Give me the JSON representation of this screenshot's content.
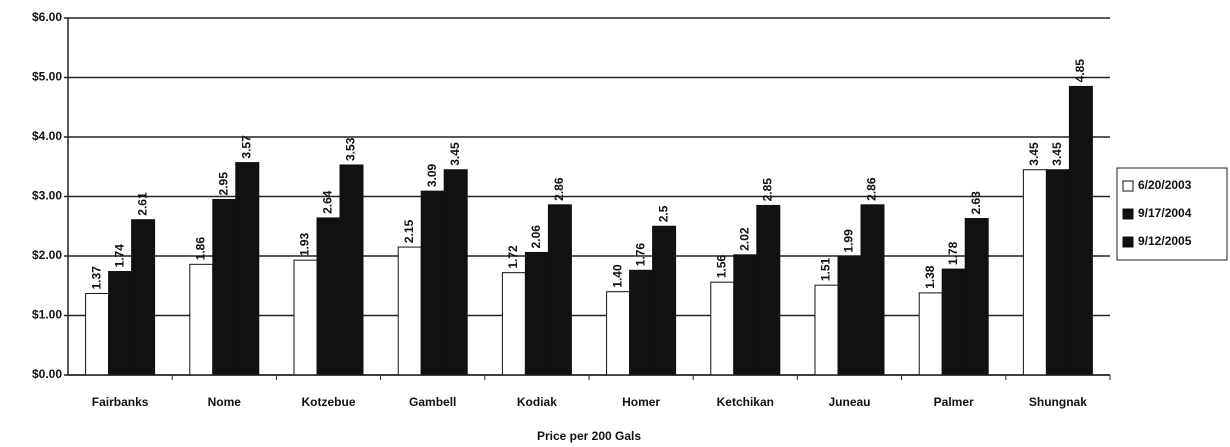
{
  "chart_data": {
    "type": "bar",
    "x_label": "Price per 200 Gals",
    "categories": [
      "Fairbanks",
      "Nome",
      "Kotzebue",
      "Gambell",
      "Kodiak",
      "Homer",
      "Ketchikan",
      "Juneau",
      "Palmer",
      "Shungnak"
    ],
    "series": [
      {
        "name": "6/20/2003",
        "color": "#ffffff",
        "values": [
          1.37,
          1.86,
          1.93,
          2.15,
          1.72,
          1.4,
          1.56,
          1.51,
          1.38,
          3.45
        ],
        "value_labels": [
          "1.37",
          "1.86",
          "1.93",
          "2.15",
          "1.72",
          "1.40",
          "1.56",
          "1.51",
          "1.38",
          "3.45"
        ]
      },
      {
        "name": "9/17/2004",
        "color": "#111111",
        "values": [
          1.74,
          2.95,
          2.64,
          3.09,
          2.06,
          1.76,
          2.02,
          1.99,
          1.78,
          3.45
        ],
        "value_labels": [
          "1.74",
          "2.95",
          "2.64",
          "3.09",
          "2.06",
          "1.76",
          "2.02",
          "1.99",
          "1.78",
          "3.45"
        ]
      },
      {
        "name": "9/12/2005",
        "color": "#111111",
        "values": [
          2.61,
          3.57,
          3.53,
          3.45,
          2.86,
          2.5,
          2.85,
          2.86,
          2.63,
          4.85
        ],
        "value_labels": [
          "2.61",
          "3.57",
          "3.53",
          "3.45",
          "2.86",
          "2.5",
          "2.85",
          "2.86",
          "2.63",
          "4.85"
        ]
      }
    ],
    "ylim": [
      0,
      6
    ],
    "yticks": [
      {
        "value": 0,
        "label": "$0.00"
      },
      {
        "value": 1,
        "label": "$1.00"
      },
      {
        "value": 2,
        "label": "$2.00"
      },
      {
        "value": 3,
        "label": "$3.00"
      },
      {
        "value": 4,
        "label": "$4.00"
      },
      {
        "value": 5,
        "label": "$5.00"
      },
      {
        "value": 6,
        "label": "$6.00"
      }
    ],
    "grid": true,
    "legend": "right"
  }
}
